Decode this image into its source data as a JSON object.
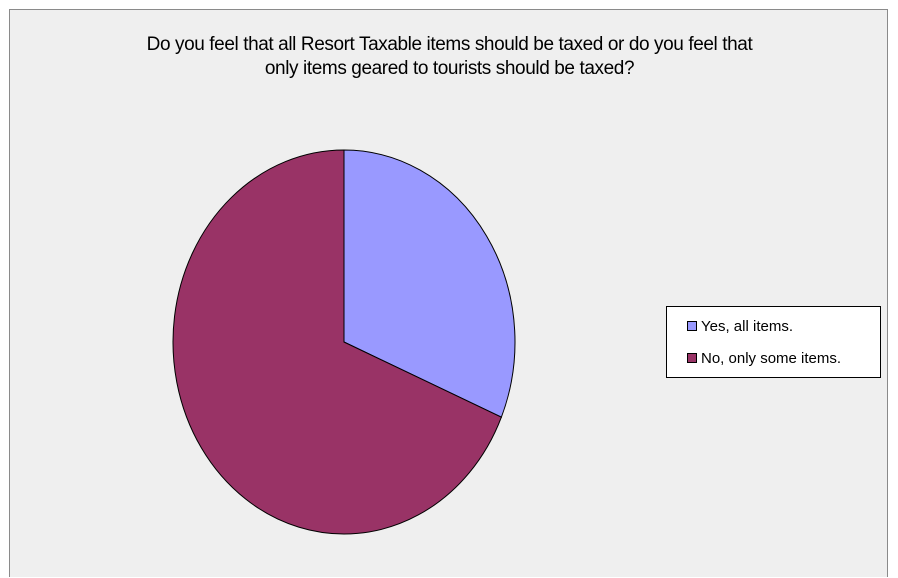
{
  "chart_data": {
    "type": "pie",
    "title_lines": [
      "Do you feel that all Resort Taxable items should be taxed or do you feel that",
      "only items geared to tourists should be taxed?"
    ],
    "categories": [
      "Yes, all items.",
      "No, only some items."
    ],
    "values": [
      31.4,
      68.6
    ],
    "colors": [
      "#9999ff",
      "#993366"
    ],
    "start_angle_deg": 0,
    "direction": "clockwise",
    "legend_position": "right"
  }
}
